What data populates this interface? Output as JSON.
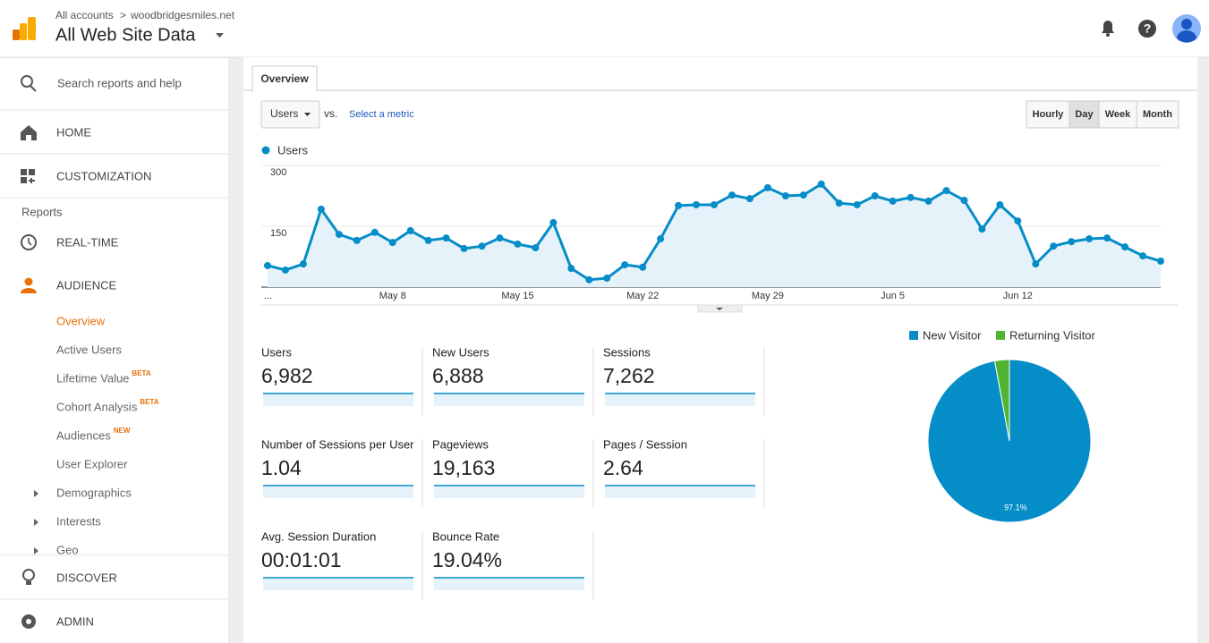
{
  "header": {
    "breadcrumb_root": "All accounts",
    "breadcrumb_property": "woodbridgesmiles.net",
    "view": "All Web Site Data"
  },
  "sidebar": {
    "search": "Search reports and help",
    "home": "HOME",
    "customization": "CUSTOMIZATION",
    "reports_heading": "Reports",
    "realtime": "REAL-TIME",
    "audience": "AUDIENCE",
    "audience_items": [
      {
        "label": "Overview"
      },
      {
        "label": "Active Users"
      },
      {
        "label": "Lifetime Value",
        "badge": "BETA"
      },
      {
        "label": "Cohort Analysis",
        "badge": "BETA"
      },
      {
        "label": "Audiences",
        "badge": "NEW"
      },
      {
        "label": "User Explorer"
      },
      {
        "label": "Demographics"
      },
      {
        "label": "Interests"
      },
      {
        "label": "Geo"
      }
    ],
    "discover": "DISCOVER",
    "admin": "ADMIN"
  },
  "tab": "Overview",
  "metric_selector": "Users",
  "vs": "vs.",
  "select_metric": "Select a metric",
  "granularity": [
    "Hourly",
    "Day",
    "Week",
    "Month"
  ],
  "metrics": [
    {
      "name": "Users",
      "value": "6,982"
    },
    {
      "name": "New Users",
      "value": "6,888"
    },
    {
      "name": "Sessions",
      "value": "7,262"
    },
    {
      "name": "Number of Sessions per User",
      "value": "1.04"
    },
    {
      "name": "Pageviews",
      "value": "19,163"
    },
    {
      "name": "Pages / Session",
      "value": "2.64"
    },
    {
      "name": "Avg. Session Duration",
      "value": "00:01:01"
    },
    {
      "name": "Bounce Rate",
      "value": "19.04%"
    }
  ],
  "chart_data": [
    {
      "type": "line",
      "categories": [
        "...",
        null,
        null,
        null,
        null,
        null,
        null,
        "May 8",
        null,
        null,
        null,
        null,
        null,
        null,
        "May 15",
        null,
        null,
        null,
        null,
        null,
        null,
        "May 22",
        null,
        null,
        null,
        null,
        null,
        null,
        "May 29",
        null,
        null,
        null,
        null,
        null,
        null,
        "Jun 5",
        null,
        null,
        null,
        null,
        null,
        null,
        "Jun 12",
        null,
        null,
        null,
        null,
        null,
        null,
        null,
        null
      ],
      "series": [
        {
          "name": "Users",
          "color": "#058dc7",
          "values": [
            53,
            42,
            57,
            192,
            130,
            115,
            135,
            110,
            139,
            115,
            121,
            95,
            101,
            121,
            106,
            97,
            159,
            46,
            18,
            22,
            55,
            49,
            119,
            201,
            203,
            203,
            227,
            218,
            245,
            225,
            227,
            254,
            207,
            203,
            225,
            212,
            221,
            212,
            238,
            214,
            143,
            203,
            163,
            57,
            101,
            112,
            119,
            121,
            99,
            77,
            64
          ]
        }
      ],
      "ylim": [
        0,
        300
      ],
      "yticks": [
        150,
        300
      ],
      "grid": true
    },
    {
      "type": "pie",
      "categories": [
        "New Visitor",
        "Returning Visitor"
      ],
      "values": [
        97.1,
        2.9
      ],
      "value_labels": [
        "97.1%",
        null
      ],
      "colors": [
        "#058dc7",
        "#50b432"
      ]
    }
  ]
}
